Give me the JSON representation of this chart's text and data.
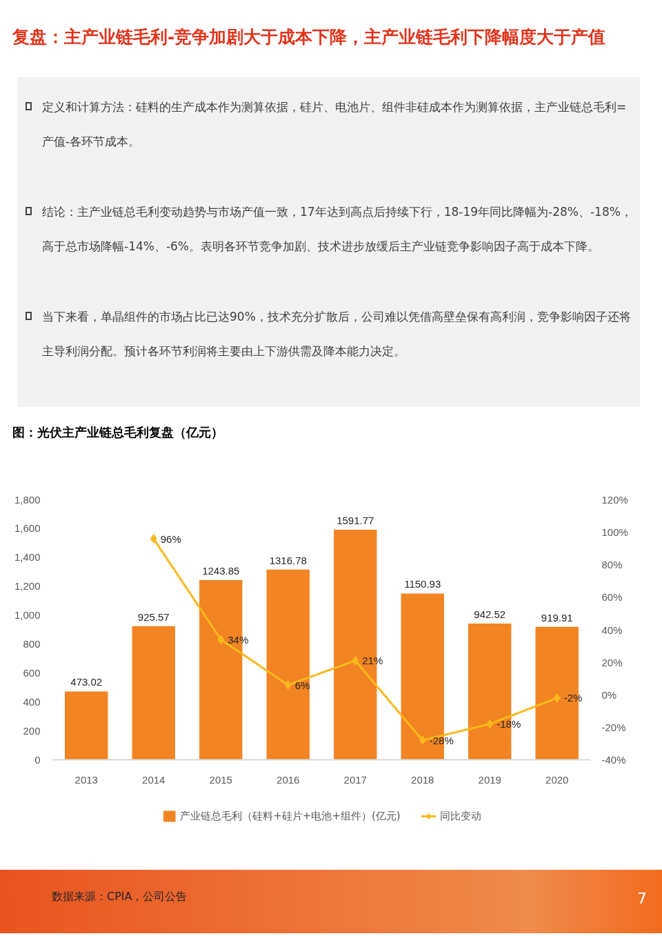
{
  "chart_data": {
    "type": "bar",
    "title": "复盘：主产业链毛利-竞争加剧大于成本下降，主产业链毛利下降幅度大于产值",
    "subtitle": "图：光伏主产业链总毛利复盘（亿元）",
    "categories": [
      "2013",
      "2014",
      "2015",
      "2016",
      "2017",
      "2018",
      "2019",
      "2020"
    ],
    "series": [
      {
        "name": "产业链总毛利（硅料+硅片+电池+组件）(亿元)",
        "color": "#f28423",
        "values": [
          473.02,
          925.57,
          1243.85,
          1316.78,
          1591.77,
          1150.93,
          942.52,
          919.91
        ],
        "value_labels": [
          "473.02",
          "925.57",
          "1243.85",
          "1316.78",
          "1591.77",
          "1150.93",
          "942.52",
          "919.91"
        ]
      },
      {
        "name": "同比变动",
        "type": "line",
        "axis": "y2",
        "color": "#f9b81c",
        "marker": "diamond",
        "line_style": "solid",
        "values": [
          null,
          96,
          34,
          6,
          21,
          -28,
          -18,
          -2
        ],
        "value_labels": [
          null,
          "96%",
          "34%",
          "6%",
          "21%",
          "-28%",
          "-18%",
          "-2%"
        ]
      }
    ],
    "ylim": [
      0,
      1800
    ],
    "yticks": [
      0,
      200,
      400,
      600,
      800,
      {
        "value": 1000,
        "label": "1,000"
      },
      {
        "value": 1200,
        "label": "1,200"
      },
      {
        "value": 1400,
        "label": "1,400"
      },
      {
        "value": 1600,
        "label": "1,600"
      },
      {
        "value": 1800,
        "label": "1,800"
      }
    ],
    "y2lim": [
      -40,
      120
    ],
    "y2ticks": [
      {
        "value": -40,
        "label": "-40%"
      },
      {
        "value": -20,
        "label": "-20%"
      },
      {
        "value": 0,
        "label": "0%"
      },
      {
        "value": 20,
        "label": "20%"
      },
      {
        "value": 40,
        "label": "40%"
      },
      {
        "value": 60,
        "label": "60%"
      },
      {
        "value": 80,
        "label": "80%"
      },
      {
        "value": 100,
        "label": "100%"
      },
      {
        "value": 120,
        "label": "120%"
      }
    ],
    "legend": "bottom",
    "annotations": [
      "定义和计算方法：硅料的生产成本作为测算依据，硅片、电池片、组件非硅成本作为测算依据，主产业链总毛利=产值-各环节成本。",
      "结论：主产业链总毛利变动趋势与市场产值一致，17年达到高点后持续下行，18-19年同比降幅为-28%、-18%，高于总市场降幅-14%、-6%。表明各环节竞争加剧、技术进步放缓后主产业链竞争影响因子高于成本下降。",
      "当下来看，单晶组件的市场占比已达90%，技术充分扩散后，公司难以凭借高壁垒保有高利润，竞争影响因子还将主导利润分配。预计各环节利润将主要由上下游供需及降本能力决定。",
      "数据来源：CPIA，公司公告",
      "7"
    ]
  }
}
